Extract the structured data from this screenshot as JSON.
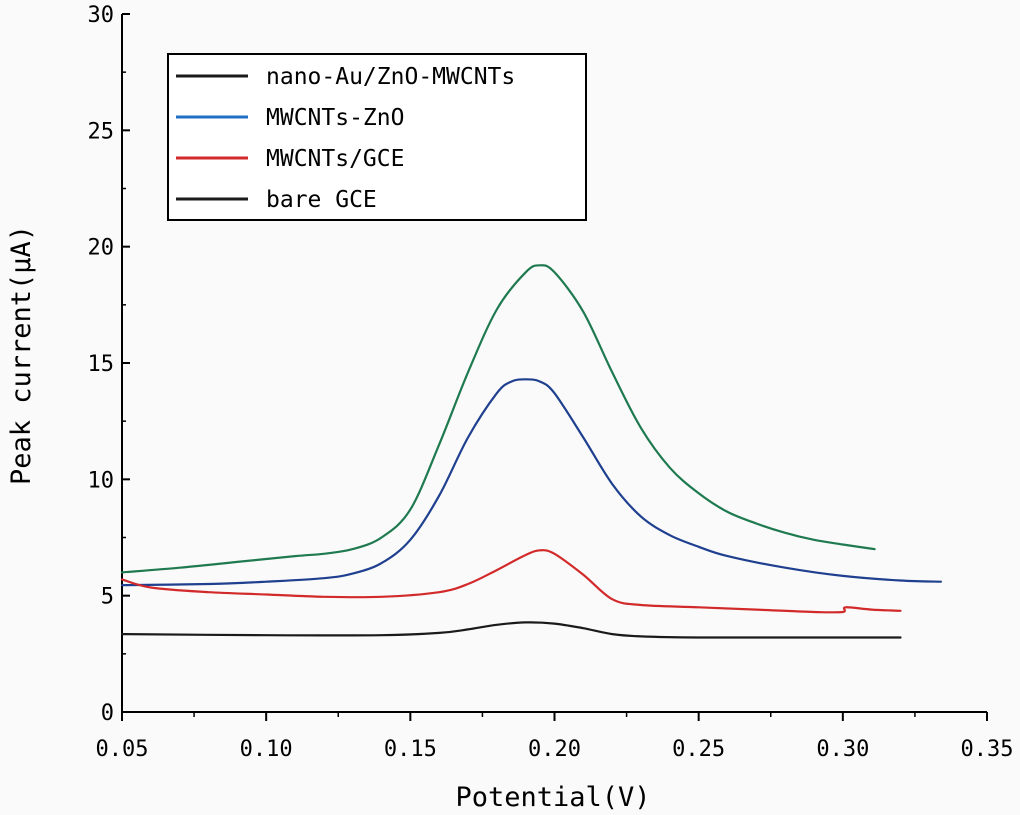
{
  "chart_data": {
    "type": "line",
    "xlabel": "Potential(V)",
    "ylabel": "Peak current(μA)",
    "xlim": [
      0.05,
      0.35
    ],
    "ylim": [
      0,
      30
    ],
    "xticks": [
      "0.05",
      "0.10",
      "0.15",
      "0.20",
      "0.25",
      "0.30",
      "0.35"
    ],
    "yticks": [
      "0",
      "5",
      "10",
      "15",
      "20",
      "25",
      "30"
    ],
    "grid": false,
    "legend_position": "top-left",
    "series": [
      {
        "name": "nano-Au/ZnO-MWCNTs",
        "legend_color": "#1a1a1a",
        "color": "#1f7a50",
        "x": [
          0.05,
          0.07,
          0.09,
          0.11,
          0.12,
          0.13,
          0.14,
          0.15,
          0.16,
          0.17,
          0.18,
          0.19,
          0.195,
          0.2,
          0.21,
          0.22,
          0.23,
          0.24,
          0.25,
          0.26,
          0.27,
          0.28,
          0.29,
          0.3,
          0.311
        ],
        "y": [
          6.0,
          6.2,
          6.45,
          6.7,
          6.8,
          7.0,
          7.5,
          8.7,
          11.5,
          14.6,
          17.3,
          18.9,
          19.2,
          18.9,
          17.2,
          14.6,
          12.2,
          10.5,
          9.4,
          8.6,
          8.1,
          7.7,
          7.4,
          7.2,
          7.0
        ]
      },
      {
        "name": "MWCNTs-ZnO",
        "legend_color": "#1f6fc4",
        "color": "#1f3f8f",
        "x": [
          0.05,
          0.08,
          0.1,
          0.12,
          0.13,
          0.14,
          0.15,
          0.16,
          0.17,
          0.18,
          0.185,
          0.19,
          0.195,
          0.2,
          0.21,
          0.22,
          0.23,
          0.24,
          0.25,
          0.26,
          0.28,
          0.3,
          0.32,
          0.334
        ],
        "y": [
          5.45,
          5.5,
          5.6,
          5.75,
          5.95,
          6.4,
          7.4,
          9.3,
          11.8,
          13.7,
          14.2,
          14.3,
          14.2,
          13.7,
          11.8,
          9.8,
          8.4,
          7.6,
          7.1,
          6.7,
          6.2,
          5.85,
          5.65,
          5.6
        ]
      },
      {
        "name": "MWCNTs/GCE",
        "legend_color": "#d22a2a",
        "color": "#d22a2a",
        "x": [
          0.05,
          0.06,
          0.08,
          0.1,
          0.12,
          0.14,
          0.16,
          0.17,
          0.18,
          0.19,
          0.195,
          0.2,
          0.21,
          0.22,
          0.23,
          0.25,
          0.27,
          0.29,
          0.3,
          0.301,
          0.31,
          0.32
        ],
        "y": [
          5.7,
          5.35,
          5.15,
          5.05,
          4.95,
          4.95,
          5.15,
          5.5,
          6.1,
          6.75,
          6.95,
          6.8,
          5.9,
          4.85,
          4.6,
          4.5,
          4.4,
          4.3,
          4.3,
          4.5,
          4.4,
          4.35
        ]
      },
      {
        "name": "bare GCE",
        "legend_color": "#1a1a1a",
        "color": "#1a1a1a",
        "x": [
          0.05,
          0.1,
          0.14,
          0.16,
          0.17,
          0.18,
          0.19,
          0.2,
          0.21,
          0.22,
          0.23,
          0.25,
          0.28,
          0.32
        ],
        "y": [
          3.35,
          3.3,
          3.3,
          3.4,
          3.55,
          3.75,
          3.85,
          3.8,
          3.6,
          3.35,
          3.25,
          3.2,
          3.2,
          3.2
        ]
      }
    ]
  }
}
